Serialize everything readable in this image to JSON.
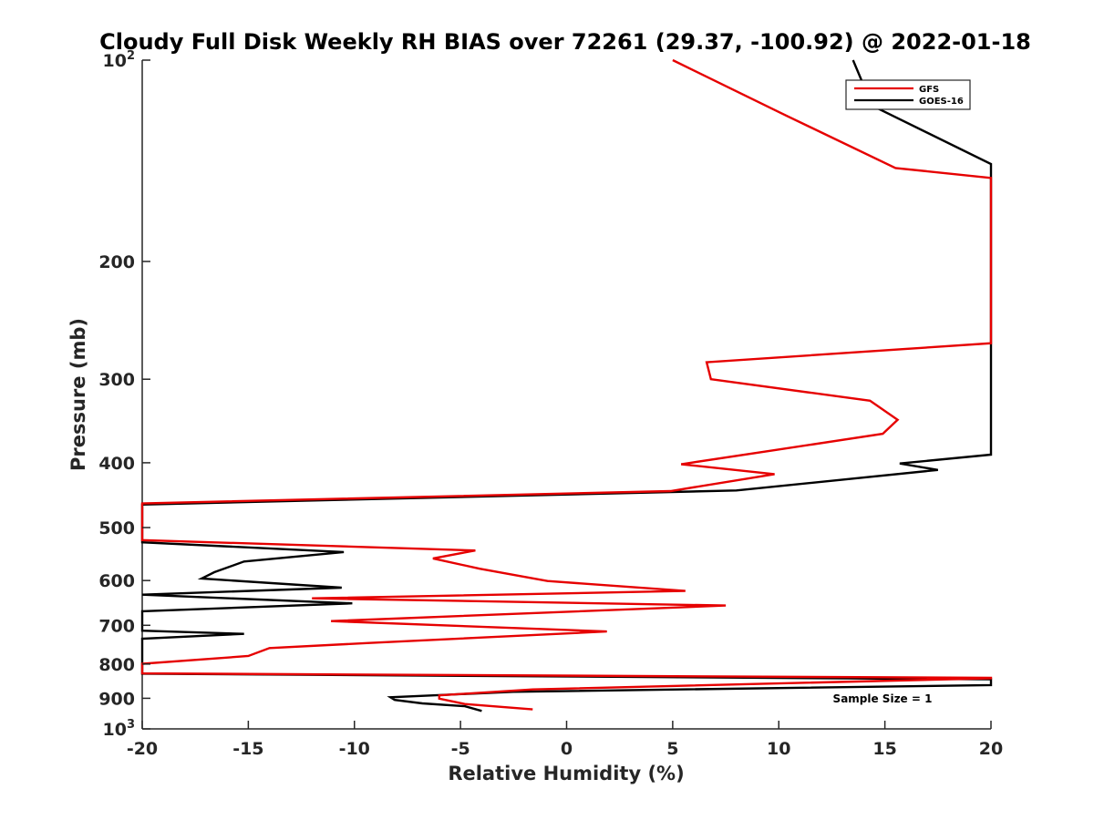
{
  "chart_data": {
    "type": "line",
    "title": "Cloudy Full Disk Weekly RH BIAS over 72261 (29.37, -100.92) @ 2022-01-18",
    "xlabel": "Relative Humidity (%)",
    "ylabel": "Pressure (mb)",
    "xlim": [
      -20,
      20
    ],
    "ylim": [
      100,
      1000
    ],
    "y_scale": "log",
    "y_reversed": true,
    "grid": false,
    "legend_position": "top-right",
    "x_ticks": [
      "-20",
      "-15",
      "-10",
      "-5",
      "0",
      "5",
      "10",
      "15",
      "20"
    ],
    "y_ticks": [
      {
        "value": 100,
        "label": "10",
        "sup": "2"
      },
      {
        "value": 200,
        "label": "200",
        "sup": ""
      },
      {
        "value": 300,
        "label": "300",
        "sup": ""
      },
      {
        "value": 400,
        "label": "400",
        "sup": ""
      },
      {
        "value": 500,
        "label": "500",
        "sup": ""
      },
      {
        "value": 600,
        "label": "600",
        "sup": ""
      },
      {
        "value": 700,
        "label": "700",
        "sup": ""
      },
      {
        "value": 800,
        "label": "800",
        "sup": ""
      },
      {
        "value": 900,
        "label": "900",
        "sup": ""
      },
      {
        "value": 1000,
        "label": "10",
        "sup": "3"
      }
    ],
    "annotation": "Sample Size = 1",
    "series": [
      {
        "name": "GFS",
        "color": "#e60000",
        "points": [
          [
            5,
            100
          ],
          [
            10.1,
            120
          ],
          [
            15.5,
            145
          ],
          [
            20,
            150
          ],
          [
            20,
            265
          ],
          [
            6.6,
            283
          ],
          [
            6.8,
            300
          ],
          [
            14.3,
            323
          ],
          [
            15.6,
            345
          ],
          [
            14.9,
            362
          ],
          [
            9.8,
            383
          ],
          [
            5.4,
            402
          ],
          [
            9.8,
            416
          ],
          [
            4.9,
            441
          ],
          [
            -20,
            460
          ],
          [
            -20,
            522
          ],
          [
            -4.3,
            541
          ],
          [
            -6.3,
            556
          ],
          [
            -4.1,
            576
          ],
          [
            -0.9,
            601
          ],
          [
            5.6,
            622
          ],
          [
            -12,
            638
          ],
          [
            7.5,
            654
          ],
          [
            -11.1,
            690
          ],
          [
            1.9,
            715
          ],
          [
            -9.3,
            744
          ],
          [
            -14,
            757
          ],
          [
            -15,
            778
          ],
          [
            -20,
            799
          ],
          [
            -20,
            826
          ],
          [
            20,
            839
          ],
          [
            20,
            840
          ],
          [
            -1.6,
            873
          ],
          [
            -6,
            891
          ],
          [
            -6,
            901
          ],
          [
            -4.8,
            918
          ],
          [
            -1.6,
            935
          ]
        ]
      },
      {
        "name": "GOES-16",
        "color": "#000000",
        "points": [
          [
            13.5,
            100
          ],
          [
            14.4,
            117
          ],
          [
            20,
            143
          ],
          [
            20,
            389
          ],
          [
            15.7,
            401
          ],
          [
            17.5,
            410
          ],
          [
            8,
            440
          ],
          [
            -20,
            462
          ],
          [
            -20,
            526
          ],
          [
            -10.5,
            544
          ],
          [
            -15.2,
            562
          ],
          [
            -16.6,
            583
          ],
          [
            -17.2,
            596
          ],
          [
            -10.6,
            615
          ],
          [
            -20,
            630
          ],
          [
            -10.1,
            649
          ],
          [
            -20,
            667
          ],
          [
            -20,
            713
          ],
          [
            -15.2,
            721
          ],
          [
            -20,
            733
          ],
          [
            -20,
            827
          ],
          [
            20,
            843
          ],
          [
            20,
            860
          ],
          [
            -2.5,
            880
          ],
          [
            -8.3,
            897
          ],
          [
            -8.1,
            905
          ],
          [
            -6.8,
            916
          ],
          [
            -4.8,
            925
          ],
          [
            -4,
            940
          ]
        ]
      }
    ]
  }
}
